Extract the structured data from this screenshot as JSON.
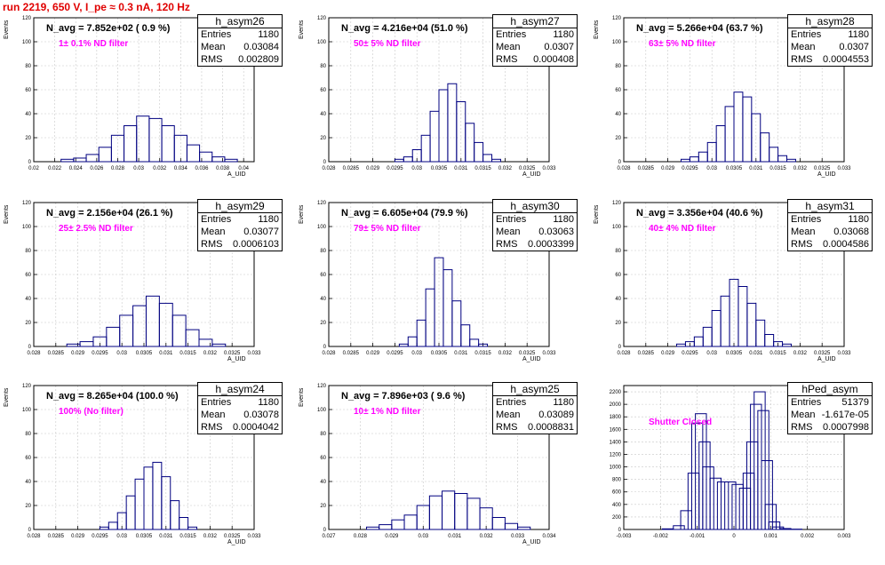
{
  "title": "run 2219,   650 V, I_pe ≈ 0.3 nA, 120 Hz",
  "colors": {
    "title": "#e00000",
    "filter_text": "#ff00ff",
    "histogram_line": "#000080",
    "grid": "#c8c8c8"
  },
  "panels": [
    {
      "name": "h_asym26",
      "navg": "N_avg = 7.852e+02 ( 0.9 %)",
      "filter": "1± 0.1% ND filter",
      "stats": {
        "entries": "1180",
        "mean": "0.03084",
        "rms": "0.002809"
      },
      "ylabel": "Events",
      "xlabel": "A_UID"
    },
    {
      "name": "h_asym27",
      "navg": "N_avg = 4.216e+04 (51.0 %)",
      "filter": "50± 5% ND filter",
      "stats": {
        "entries": "1180",
        "mean": "0.0307",
        "rms": "0.000408"
      },
      "ylabel": "Events",
      "xlabel": "A_UID"
    },
    {
      "name": "h_asym28",
      "navg": "N_avg = 5.266e+04 (63.7 %)",
      "filter": "63± 5% ND filter",
      "stats": {
        "entries": "1180",
        "mean": "0.0307",
        "rms": "0.0004553"
      },
      "ylabel": "Events",
      "xlabel": "A_UID"
    },
    {
      "name": "h_asym29",
      "navg": "N_avg = 2.156e+04 (26.1 %)",
      "filter": "25± 2.5% ND filter",
      "stats": {
        "entries": "1180",
        "mean": "0.03077",
        "rms": "0.0006103"
      },
      "ylabel": "Events",
      "xlabel": "A_UID"
    },
    {
      "name": "h_asym30",
      "navg": "N_avg = 6.605e+04 (79.9 %)",
      "filter": "79± 5% ND filter",
      "stats": {
        "entries": "1180",
        "mean": "0.03063",
        "rms": "0.0003399"
      },
      "ylabel": "Events",
      "xlabel": "A_UID"
    },
    {
      "name": "h_asym31",
      "navg": "N_avg = 3.356e+04 (40.6 %)",
      "filter": "40± 4% ND filter",
      "stats": {
        "entries": "1180",
        "mean": "0.03068",
        "rms": "0.0004586"
      },
      "ylabel": "Events",
      "xlabel": "A_UID"
    },
    {
      "name": "h_asym24",
      "navg": "N_avg = 8.265e+04 (100.0 %)",
      "filter": "100% (No filter)",
      "stats": {
        "entries": "1180",
        "mean": "0.03078",
        "rms": "0.0004042"
      },
      "ylabel": "Events",
      "xlabel": "A_UID"
    },
    {
      "name": "h_asym25",
      "navg": "N_avg = 7.896e+03 ( 9.6 %)",
      "filter": "10± 1% ND filter",
      "stats": {
        "entries": "1180",
        "mean": "0.03089",
        "rms": "0.0008831"
      },
      "ylabel": "Events",
      "xlabel": "A_UID"
    },
    {
      "name": "hPed_asym",
      "navg": "",
      "filter": "Shutter Closed",
      "stats": {
        "entries": "51379",
        "mean": "-1.617e-05",
        "rms": "0.0007998"
      },
      "ylabel": "",
      "xlabel": ""
    }
  ],
  "stat_labels": {
    "entries": "Entries",
    "mean": "Mean",
    "rms": "RMS"
  },
  "chart_data": [
    {
      "type": "histogram",
      "title": "h_asym26",
      "xlabel": "A_UID",
      "ylabel": "Events",
      "xlim": [
        0.02,
        0.041
      ],
      "ylim": [
        0,
        120
      ],
      "xticks": [
        "0.02",
        "0.022",
        "0.024",
        "0.026",
        "0.028",
        "0.03",
        "0.032",
        "0.034",
        "0.036",
        "0.038",
        "0.04"
      ],
      "yticks": [
        "0",
        "20",
        "40",
        "60",
        "80",
        "100",
        "120"
      ],
      "x": [
        0.0232,
        0.0244,
        0.0256,
        0.0268,
        0.028,
        0.0292,
        0.0304,
        0.0316,
        0.0328,
        0.034,
        0.0352,
        0.0364,
        0.0376,
        0.0388
      ],
      "values": [
        2,
        3,
        6,
        12,
        22,
        30,
        38,
        36,
        30,
        22,
        14,
        8,
        4,
        2
      ]
    },
    {
      "type": "histogram",
      "title": "h_asym27",
      "xlabel": "A_UID",
      "ylabel": "Events",
      "xlim": [
        0.028,
        0.033
      ],
      "ylim": [
        0,
        120
      ],
      "xticks": [
        "0.028",
        "0.0285",
        "0.029",
        "0.0295",
        "0.03",
        "0.0305",
        "0.031",
        "0.0315",
        "0.032",
        "0.0325",
        "0.033"
      ],
      "yticks": [
        "0",
        "20",
        "40",
        "60",
        "80",
        "100",
        "120"
      ],
      "x": [
        0.0296,
        0.0298,
        0.03,
        0.0302,
        0.0304,
        0.0306,
        0.0308,
        0.031,
        0.0312,
        0.0314,
        0.0316,
        0.0318
      ],
      "values": [
        2,
        4,
        10,
        22,
        42,
        60,
        65,
        50,
        32,
        16,
        6,
        2
      ]
    },
    {
      "type": "histogram",
      "title": "h_asym28",
      "xlabel": "A_UID",
      "ylabel": "Events",
      "xlim": [
        0.028,
        0.033
      ],
      "ylim": [
        0,
        120
      ],
      "xticks": [
        "0.028",
        "0.0285",
        "0.029",
        "0.0295",
        "0.03",
        "0.0305",
        "0.031",
        "0.0315",
        "0.032",
        "0.0325",
        "0.033"
      ],
      "yticks": [
        "0",
        "20",
        "40",
        "60",
        "80",
        "100",
        "120"
      ],
      "x": [
        0.0294,
        0.0296,
        0.0298,
        0.03,
        0.0302,
        0.0304,
        0.0306,
        0.0308,
        0.031,
        0.0312,
        0.0314,
        0.0316,
        0.0318
      ],
      "values": [
        2,
        4,
        8,
        16,
        30,
        46,
        58,
        54,
        40,
        24,
        12,
        5,
        2
      ]
    },
    {
      "type": "histogram",
      "title": "h_asym29",
      "xlabel": "A_UID",
      "ylabel": "Events",
      "xlim": [
        0.028,
        0.033
      ],
      "ylim": [
        0,
        120
      ],
      "xticks": [
        "0.028",
        "0.0285",
        "0.029",
        "0.0295",
        "0.03",
        "0.0305",
        "0.031",
        "0.0315",
        "0.032",
        "0.0325",
        "0.033"
      ],
      "yticks": [
        "0",
        "20",
        "40",
        "60",
        "80",
        "100",
        "120"
      ],
      "x": [
        0.0289,
        0.0292,
        0.0295,
        0.0298,
        0.0301,
        0.0304,
        0.0307,
        0.031,
        0.0313,
        0.0316,
        0.0319,
        0.0322
      ],
      "values": [
        2,
        4,
        8,
        16,
        26,
        34,
        42,
        36,
        26,
        14,
        6,
        2
      ]
    },
    {
      "type": "histogram",
      "title": "h_asym30",
      "xlabel": "A_UID",
      "ylabel": "Events",
      "xlim": [
        0.028,
        0.033
      ],
      "ylim": [
        0,
        120
      ],
      "xticks": [
        "0.028",
        "0.0285",
        "0.029",
        "0.0295",
        "0.03",
        "0.0305",
        "0.031",
        "0.0315",
        "0.032",
        "0.0325",
        "0.033"
      ],
      "yticks": [
        "0",
        "20",
        "40",
        "60",
        "80",
        "100",
        "120"
      ],
      "x": [
        0.0297,
        0.0299,
        0.0301,
        0.0303,
        0.0305,
        0.0307,
        0.0309,
        0.0311,
        0.0313,
        0.0315
      ],
      "values": [
        2,
        8,
        22,
        48,
        74,
        64,
        38,
        18,
        6,
        2
      ]
    },
    {
      "type": "histogram",
      "title": "h_asym31",
      "xlabel": "A_UID",
      "ylabel": "Events",
      "xlim": [
        0.028,
        0.033
      ],
      "ylim": [
        0,
        120
      ],
      "xticks": [
        "0.028",
        "0.0285",
        "0.029",
        "0.0295",
        "0.03",
        "0.0305",
        "0.031",
        "0.0315",
        "0.032",
        "0.0325",
        "0.033"
      ],
      "yticks": [
        "0",
        "20",
        "40",
        "60",
        "80",
        "100",
        "120"
      ],
      "x": [
        0.0293,
        0.0295,
        0.0297,
        0.0299,
        0.0301,
        0.0303,
        0.0305,
        0.0307,
        0.0309,
        0.0311,
        0.0313,
        0.0315,
        0.0317
      ],
      "values": [
        2,
        4,
        8,
        16,
        30,
        42,
        56,
        50,
        36,
        22,
        10,
        4,
        2
      ]
    },
    {
      "type": "histogram",
      "title": "h_asym24",
      "xlabel": "A_UID",
      "ylabel": "Events",
      "xlim": [
        0.028,
        0.033
      ],
      "ylim": [
        0,
        120
      ],
      "xticks": [
        "0.028",
        "0.0285",
        "0.029",
        "0.0295",
        "0.03",
        "0.0305",
        "0.031",
        "0.0315",
        "0.032",
        "0.0325",
        "0.033"
      ],
      "yticks": [
        "0",
        "20",
        "40",
        "60",
        "80",
        "100",
        "120"
      ],
      "x": [
        0.0296,
        0.0298,
        0.03,
        0.0302,
        0.0304,
        0.0306,
        0.0308,
        0.031,
        0.0312,
        0.0314,
        0.0316
      ],
      "values": [
        2,
        6,
        14,
        28,
        42,
        52,
        56,
        44,
        24,
        10,
        2
      ]
    },
    {
      "type": "histogram",
      "title": "h_asym25",
      "xlabel": "A_UID",
      "ylabel": "Events",
      "xlim": [
        0.027,
        0.034
      ],
      "ylim": [
        0,
        120
      ],
      "xticks": [
        "0.027",
        "0.028",
        "0.029",
        "0.03",
        "0.031",
        "0.032",
        "0.033",
        "0.034"
      ],
      "yticks": [
        "0",
        "20",
        "40",
        "60",
        "80",
        "100",
        "120"
      ],
      "x": [
        0.0284,
        0.0288,
        0.0292,
        0.0296,
        0.03,
        0.0304,
        0.0308,
        0.0312,
        0.0316,
        0.032,
        0.0324,
        0.0328,
        0.0332
      ],
      "values": [
        2,
        4,
        8,
        12,
        20,
        28,
        32,
        30,
        26,
        18,
        10,
        5,
        2
      ]
    },
    {
      "type": "histogram",
      "title": "hPed_asym",
      "xlabel": "",
      "ylabel": "",
      "xlim": [
        -0.003,
        0.003
      ],
      "ylim": [
        0,
        2300
      ],
      "xticks": [
        "-0.003",
        "-0.002",
        "-0.001",
        "0",
        "0.001",
        "0.002",
        "0.003"
      ],
      "yticks": [
        "0",
        "200",
        "400",
        "600",
        "800",
        "1000",
        "1200",
        "1400",
        "1600",
        "1800",
        "2000",
        "2200"
      ],
      "x": [
        -0.0018,
        -0.0015,
        -0.0013,
        -0.0011,
        -0.001,
        -0.0009,
        -0.0008,
        -0.0007,
        -0.0005,
        -0.0003,
        -0.0001,
        0.0001,
        0.0003,
        0.0004,
        0.0005,
        0.0006,
        0.0007,
        0.0008,
        0.0009,
        0.001,
        0.0011,
        0.0012,
        0.0014,
        0.0017
      ],
      "values": [
        10,
        60,
        300,
        900,
        1700,
        1850,
        1400,
        1000,
        820,
        760,
        760,
        720,
        660,
        900,
        1400,
        2000,
        2200,
        1900,
        1100,
        400,
        120,
        40,
        15,
        5
      ]
    }
  ]
}
